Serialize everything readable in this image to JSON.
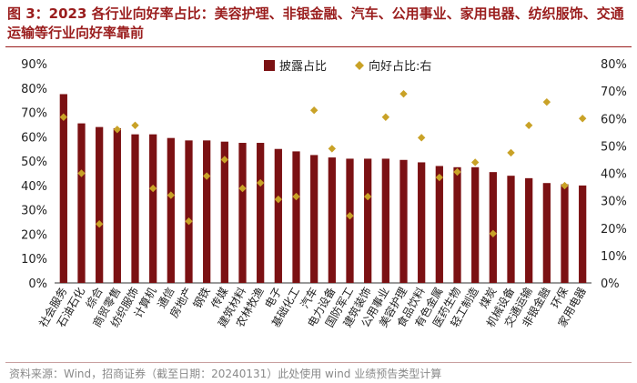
{
  "title": "图 3：2023 各行业向好率占比：美容护理、非银金融、汽车、公用事业、家用电器、纺织服饰、交通运输等行业向好率靠前",
  "source": "资料来源：Wind，招商证券（截至日期：20240131）此处使用 wind 业绩预告类型计算",
  "chart_data": {
    "type": "bar+scatter",
    "categories": [
      "社会服务",
      "石油石化",
      "综合",
      "商贸零售",
      "纺织服饰",
      "计算机",
      "通信",
      "房地产",
      "钢铁",
      "传媒",
      "建筑材料",
      "农林牧渔",
      "电子",
      "基础化工",
      "汽车",
      "电力设备",
      "国防军工",
      "建筑装饰",
      "公用事业",
      "美容护理",
      "食品饮料",
      "有色金属",
      "医药生物",
      "轻工制造",
      "煤炭",
      "机械设备",
      "交通运输",
      "非银金融",
      "环保",
      "家用电器"
    ],
    "series": [
      {
        "name": "披露占比",
        "type": "bar",
        "axis": "left",
        "color": "#7b1113",
        "values": [
          77.5,
          65.5,
          64,
          63.5,
          61,
          61,
          59.5,
          58.5,
          58.5,
          58,
          57.5,
          57.5,
          55,
          54,
          52.5,
          51.5,
          51,
          51,
          51,
          50.5,
          49.5,
          48,
          47.5,
          47.5,
          45.5,
          44,
          43,
          41,
          40.5,
          40
        ]
      },
      {
        "name": "向好占比:右",
        "type": "scatter",
        "axis": "right",
        "color": "#c9a227",
        "values": [
          60.5,
          40,
          21.5,
          56,
          57.5,
          34.5,
          32,
          22.5,
          39,
          45,
          34.5,
          36.5,
          30.5,
          31.5,
          63,
          49,
          24.5,
          31.5,
          60.5,
          69,
          53,
          38.5,
          40.5,
          44,
          18,
          47.5,
          57.5,
          66,
          35.5,
          60
        ]
      }
    ],
    "y_left": {
      "min": 0,
      "max": 90,
      "step": 10,
      "format": "%"
    },
    "y_right": {
      "min": 0,
      "max": 80,
      "step": 10,
      "format": "%"
    },
    "legend": {
      "position": "top-right"
    }
  }
}
